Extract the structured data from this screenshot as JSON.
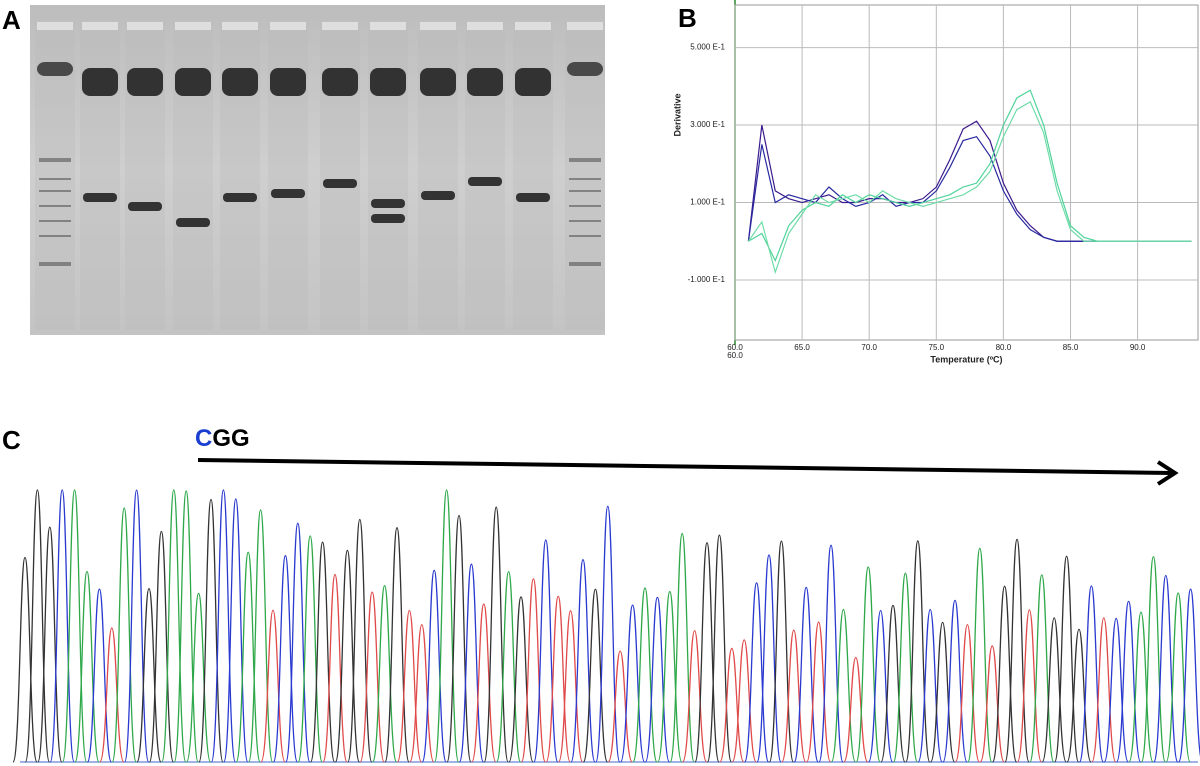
{
  "panels": {
    "a": "A",
    "b": "B",
    "c": "C"
  },
  "sequence": {
    "highlight": "C",
    "rest": "GG"
  },
  "chart_data": {
    "type": "line",
    "ylabel": "Derivative",
    "xlabel": "Temperature (ºC)",
    "origin_label": "60.0",
    "x": [
      61,
      62,
      63,
      64,
      65,
      66,
      67,
      68,
      69,
      70,
      71,
      72,
      73,
      74,
      75,
      76,
      77,
      78,
      79,
      80,
      81,
      82,
      83,
      84,
      85,
      86,
      87,
      88,
      89,
      90,
      91,
      92,
      93,
      94
    ],
    "series": [
      {
        "color": "#3a1a8c",
        "values": [
          0.0,
          0.3,
          0.13,
          0.11,
          0.1,
          0.11,
          0.12,
          0.1,
          0.1,
          0.11,
          0.11,
          0.1,
          0.1,
          0.11,
          0.14,
          0.21,
          0.29,
          0.31,
          0.26,
          0.15,
          0.08,
          0.04,
          0.01,
          0.0,
          0.0,
          0.0,
          0.0,
          0.0,
          0.0,
          0.0,
          0.0,
          0.0,
          0.0,
          0.0
        ]
      },
      {
        "color": "#2a2aa0",
        "values": [
          0.0,
          0.25,
          0.1,
          0.12,
          0.11,
          0.1,
          0.14,
          0.11,
          0.09,
          0.1,
          0.12,
          0.09,
          0.1,
          0.1,
          0.13,
          0.19,
          0.26,
          0.27,
          0.22,
          0.13,
          0.07,
          0.03,
          0.01,
          0.0,
          0.0,
          0.0,
          0.0,
          0.0,
          0.0,
          0.0,
          0.0,
          0.0,
          0.0,
          0.0
        ]
      },
      {
        "color": "#4fd39a",
        "values": [
          0.0,
          0.02,
          -0.05,
          0.04,
          0.08,
          0.1,
          0.09,
          0.12,
          0.1,
          0.12,
          0.11,
          0.1,
          0.09,
          0.1,
          0.11,
          0.12,
          0.14,
          0.15,
          0.2,
          0.3,
          0.37,
          0.39,
          0.3,
          0.15,
          0.04,
          0.01,
          0.0,
          0.0,
          0.0,
          0.0,
          0.0,
          0.0,
          0.0,
          0.0
        ]
      },
      {
        "color": "#6fdca8",
        "values": [
          0.0,
          0.05,
          -0.08,
          0.02,
          0.07,
          0.12,
          0.1,
          0.11,
          0.12,
          0.1,
          0.13,
          0.11,
          0.1,
          0.09,
          0.1,
          0.11,
          0.12,
          0.14,
          0.18,
          0.27,
          0.34,
          0.36,
          0.28,
          0.13,
          0.03,
          0.0,
          0.0,
          0.0,
          0.0,
          0.0,
          0.0,
          0.0,
          0.0,
          0.0
        ]
      }
    ],
    "xlim": [
      60,
      94.5
    ],
    "ylim": [
      -0.255,
      0.61
    ],
    "xticks": [
      {
        "value": 60,
        "label": "60.0"
      },
      {
        "value": 65,
        "label": "65.0"
      },
      {
        "value": 70,
        "label": "70.0"
      },
      {
        "value": 75,
        "label": "75.0"
      },
      {
        "value": 80,
        "label": "80.0"
      },
      {
        "value": 85,
        "label": "85.0"
      },
      {
        "value": 90,
        "label": "90.0"
      }
    ],
    "yticks": [
      {
        "value": -0.1,
        "label": "-1.000 E-1"
      },
      {
        "value": 0.1,
        "label": "1.000 E-1"
      },
      {
        "value": 0.3,
        "label": "3.000 E-1"
      },
      {
        "value": 0.5,
        "label": "5.000 E-1"
      }
    ],
    "grid": true
  }
}
